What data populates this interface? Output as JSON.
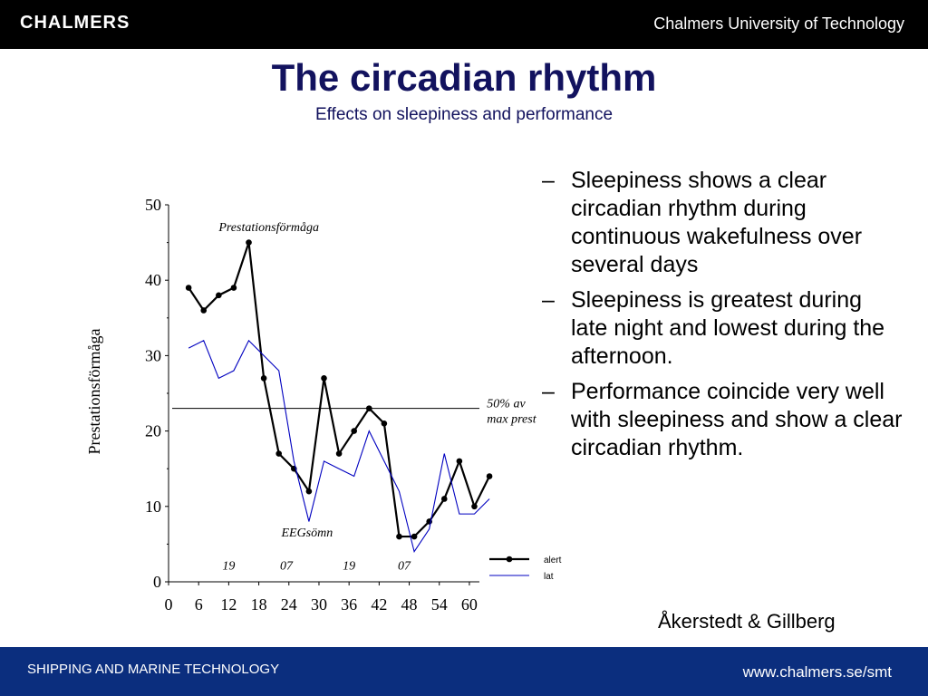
{
  "header": {
    "logo_text": "CHALMERS",
    "university": "Chalmers University of Technology"
  },
  "slide": {
    "title": "The circadian rhythm",
    "subtitle": "Effects on sleepiness and performance",
    "bullets": [
      {
        "dash": "–",
        "text": "Sleepiness shows a clear circadian rhythm during continuous wakefulness over several days"
      },
      {
        "dash": "–",
        "text": "Sleepiness is greatest during late night and lowest during the afternoon."
      },
      {
        "dash": "–",
        "text": "Performance coincide very well with sleepiness and show a clear circadian rhythm."
      }
    ],
    "citation": "Åkerstedt & Gillberg"
  },
  "footer": {
    "department": "SHIPPING AND MARINE TECHNOLOGY",
    "url": "www.chalmers.se/smt"
  },
  "colors": {
    "title": "#12125e",
    "footer_bg": "#0b2e7e",
    "header_bg": "#000000",
    "alert_line": "#000000",
    "lat_line": "#0000c0"
  },
  "chart_data": {
    "type": "line",
    "ylabel": "Prestationsförmåga",
    "xlabel": "",
    "ylim": [
      0,
      50
    ],
    "xlim": [
      0,
      62
    ],
    "y_ticks": [
      "0",
      "10",
      "20",
      "30",
      "40",
      "50"
    ],
    "x_ticks": [
      "0",
      "6",
      "12",
      "18",
      "24",
      "30",
      "36",
      "42",
      "48",
      "54",
      "60"
    ],
    "x_tick_values": [
      0,
      6,
      12,
      18,
      24,
      30,
      36,
      42,
      48,
      54,
      60
    ],
    "annotations": {
      "top_label": "Prestationsförmåga",
      "threshold_label_line1": "50% av",
      "threshold_label_line2": "max prest",
      "sleep_label": "EEGsömn",
      "clock_labels": [
        "19",
        "07",
        "19",
        "07"
      ],
      "clock_label_x": [
        12,
        23.5,
        36,
        47
      ]
    },
    "threshold": 23,
    "series": [
      {
        "name": "alert",
        "x": [
          4,
          7,
          10,
          13,
          16,
          19,
          22,
          25,
          28,
          31,
          34,
          37,
          40,
          43,
          46,
          49,
          52,
          55,
          58,
          61,
          64
        ],
        "values": [
          39,
          36,
          38,
          39,
          45,
          27,
          17,
          15,
          12,
          27,
          17,
          20,
          23,
          21,
          6,
          6,
          8,
          11,
          16,
          10,
          14
        ]
      },
      {
        "name": "lat",
        "x": [
          4,
          7,
          10,
          13,
          16,
          19,
          22,
          25,
          28,
          31,
          34,
          37,
          40,
          43,
          46,
          49,
          52,
          55,
          58,
          61,
          64
        ],
        "values": [
          31,
          32,
          27,
          28,
          32,
          30,
          28,
          16,
          8,
          16,
          15,
          14,
          20,
          16,
          12,
          4,
          7,
          17,
          9,
          9,
          11
        ]
      }
    ]
  }
}
